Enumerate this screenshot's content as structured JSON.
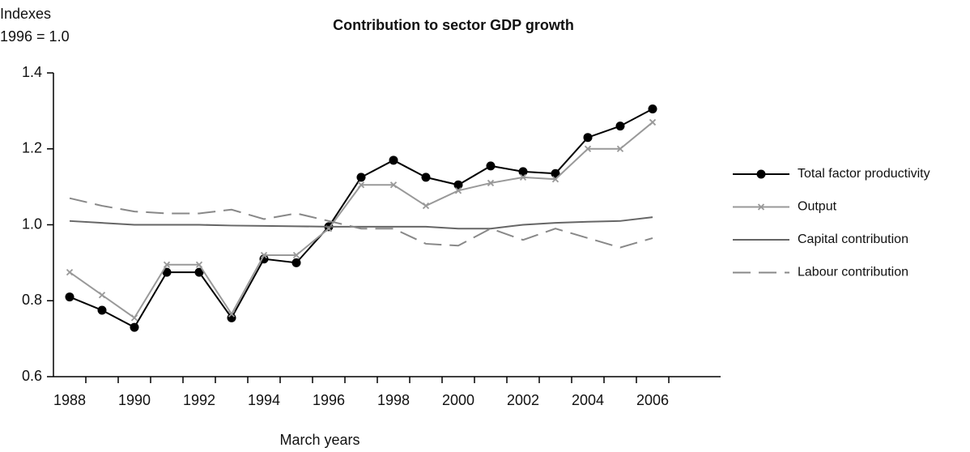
{
  "chart_data": {
    "type": "line",
    "title": "Contribution to sector GDP growth",
    "y_label": "Indexes",
    "y_sublabel": "1996 = 1.0",
    "x_label": "March years",
    "x": [
      1988,
      1989,
      1990,
      1991,
      1992,
      1993,
      1994,
      1995,
      1996,
      1997,
      1998,
      1999,
      2000,
      2001,
      2002,
      2003,
      2004,
      2005,
      2006
    ],
    "xlim": [
      1987.5,
      2008.1
    ],
    "xticks": [
      1988,
      1990,
      1992,
      1994,
      1996,
      1998,
      2000,
      2002,
      2004,
      2006
    ],
    "ylim": [
      0.6,
      1.4
    ],
    "yticks": [
      0.6,
      0.8,
      {
        "value": 1,
        "label": "1.0"
      },
      1.2,
      1.4
    ],
    "legend_position": "right",
    "series": [
      {
        "name": "Total factor productivity",
        "color": "#000000",
        "marker": "circle",
        "dash": false,
        "values": [
          0.81,
          0.775,
          0.73,
          0.875,
          0.875,
          0.755,
          0.91,
          0.9,
          0.995,
          1.125,
          1.17,
          1.125,
          1.105,
          1.155,
          1.14,
          1.135,
          1.23,
          1.26,
          1.305
        ]
      },
      {
        "name": "Output",
        "color": "#999999",
        "marker": "x",
        "dash": false,
        "values": [
          0.875,
          0.815,
          0.755,
          0.895,
          0.895,
          0.765,
          0.92,
          0.92,
          0.99,
          1.105,
          1.105,
          1.05,
          1.09,
          1.11,
          1.125,
          1.12,
          1.2,
          1.2,
          1.27
        ]
      },
      {
        "name": "Capital contribution",
        "color": "#666666",
        "marker": "none",
        "dash": false,
        "values": [
          1.01,
          1.005,
          1.0,
          1.0,
          1.0,
          0.998,
          0.997,
          0.996,
          0.995,
          0.995,
          0.995,
          0.995,
          0.99,
          0.99,
          1.0,
          1.005,
          1.008,
          1.01,
          1.02
        ]
      },
      {
        "name": "Labour contribution",
        "color": "#888888",
        "marker": "none",
        "dash": true,
        "values": [
          1.07,
          1.05,
          1.035,
          1.03,
          1.03,
          1.04,
          1.015,
          1.03,
          1.01,
          0.99,
          0.99,
          0.95,
          0.945,
          0.99,
          0.96,
          0.99,
          0.965,
          0.94,
          0.965
        ]
      }
    ]
  }
}
